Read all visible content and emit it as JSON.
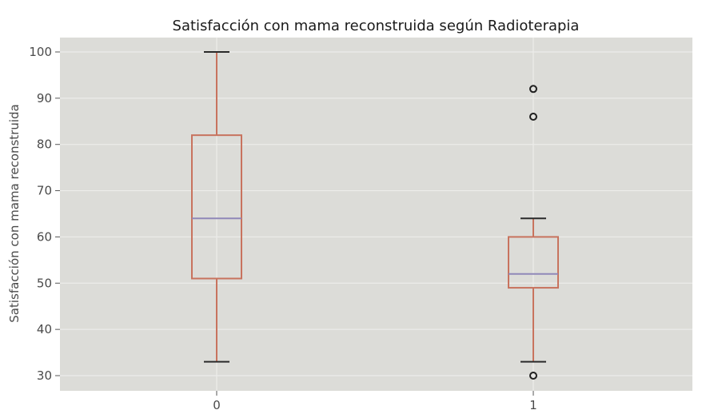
{
  "chart_data": {
    "type": "boxplot",
    "title": "Satisfacción con mama reconstruida según Radioterapia",
    "xlabel": "",
    "ylabel": "Satisfacción con mama reconstruida",
    "categories": [
      "0",
      "1"
    ],
    "ylim": [
      28,
      103
    ],
    "yticks": [
      30,
      40,
      50,
      60,
      70,
      80,
      90,
      100
    ],
    "grid": true,
    "boxes": [
      {
        "category": "0",
        "whisker_low": 33,
        "q1": 51,
        "median": 64,
        "q3": 82,
        "whisker_high": 100,
        "outliers": []
      },
      {
        "category": "1",
        "whisker_low": 33,
        "q1": 49,
        "median": 52,
        "q3": 60,
        "whisker_high": 64,
        "outliers": [
          92,
          86,
          30
        ]
      }
    ],
    "colors": {
      "background": "#dcdcd8",
      "grid": "#ececea",
      "box": "#c8735e",
      "median": "#9088b8",
      "whisker": "#c8735e",
      "cap": "#2a2a2a",
      "outlier": "#1f1f1f"
    }
  }
}
